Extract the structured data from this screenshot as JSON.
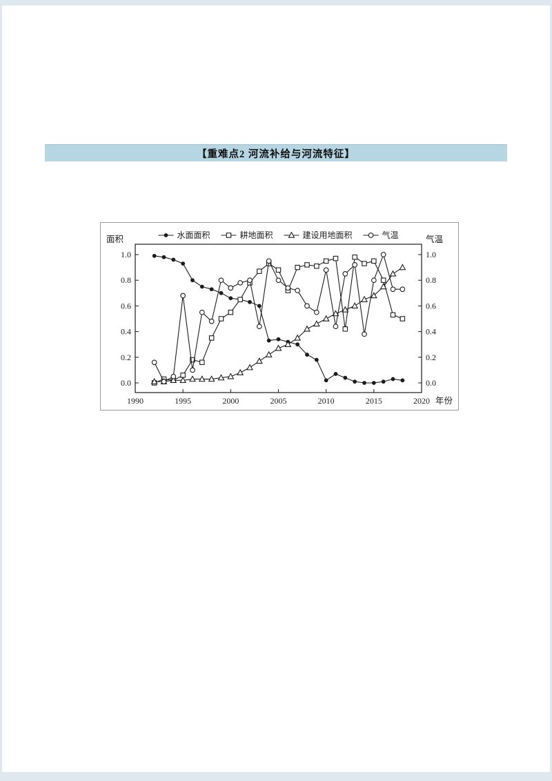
{
  "colors": {
    "outer_bg": "#dfe8ee",
    "page_bg": "#ffffff",
    "header_bg": "#b7d6e3",
    "ink": "#1c1c1c"
  },
  "header": {
    "title": "【重难点2 河流补给与河流特征】"
  },
  "chart": {
    "left_axis_title": "面积",
    "right_axis_title": "气温",
    "x_axis_title": "年份"
  },
  "chart_data": {
    "type": "line",
    "title": "",
    "xlabel": "年份",
    "ylabel_left": "面积",
    "ylabel_right": "气温",
    "legend_position": "top",
    "grid": false,
    "xlim": [
      1990,
      2020
    ],
    "ylim": [
      0.0,
      1.0
    ],
    "xticks": [
      1990,
      1995,
      2000,
      2005,
      2010,
      2015,
      2020
    ],
    "yticks": [
      "0.0",
      "0.2",
      "0.4",
      "0.6",
      "0.8",
      "1.0"
    ],
    "x": [
      1992,
      1993,
      1994,
      1995,
      1996,
      1997,
      1998,
      1999,
      2000,
      2001,
      2002,
      2003,
      2004,
      2005,
      2006,
      2007,
      2008,
      2009,
      2010,
      2011,
      2012,
      2013,
      2014,
      2015,
      2016,
      2017,
      2018
    ],
    "series": [
      {
        "id": "water-area",
        "name": "水面面积",
        "marker": "filled-circle",
        "values": [
          0.99,
          0.98,
          0.96,
          0.93,
          0.8,
          0.75,
          0.73,
          0.7,
          0.66,
          0.65,
          0.63,
          0.6,
          0.33,
          0.34,
          0.32,
          0.3,
          0.22,
          0.18,
          0.02,
          0.07,
          0.04,
          0.01,
          0.0,
          0.0,
          0.01,
          0.03,
          0.02
        ]
      },
      {
        "id": "farmland-area",
        "name": "耕地面积",
        "marker": "open-square",
        "values": [
          0.0,
          0.03,
          0.02,
          0.06,
          0.18,
          0.16,
          0.35,
          0.5,
          0.55,
          0.65,
          0.78,
          0.87,
          0.93,
          0.88,
          0.72,
          0.9,
          0.92,
          0.91,
          0.95,
          0.97,
          0.42,
          0.98,
          0.93,
          0.95,
          0.8,
          0.53,
          0.5
        ]
      },
      {
        "id": "construction-area",
        "name": "建设用地面积",
        "marker": "open-triangle",
        "values": [
          0.01,
          0.01,
          0.02,
          0.02,
          0.03,
          0.03,
          0.03,
          0.04,
          0.05,
          0.08,
          0.12,
          0.17,
          0.22,
          0.27,
          0.3,
          0.35,
          0.42,
          0.46,
          0.5,
          0.54,
          0.57,
          0.6,
          0.65,
          0.68,
          0.75,
          0.85,
          0.9
        ]
      },
      {
        "id": "temperature",
        "name": "气温",
        "marker": "open-circle",
        "values": [
          0.16,
          0.01,
          0.05,
          0.68,
          0.1,
          0.55,
          0.48,
          0.8,
          0.74,
          0.78,
          0.8,
          0.44,
          0.95,
          0.8,
          0.74,
          0.72,
          0.6,
          0.55,
          0.88,
          0.44,
          0.85,
          0.92,
          0.38,
          0.8,
          1.0,
          0.73,
          0.73
        ]
      }
    ]
  }
}
